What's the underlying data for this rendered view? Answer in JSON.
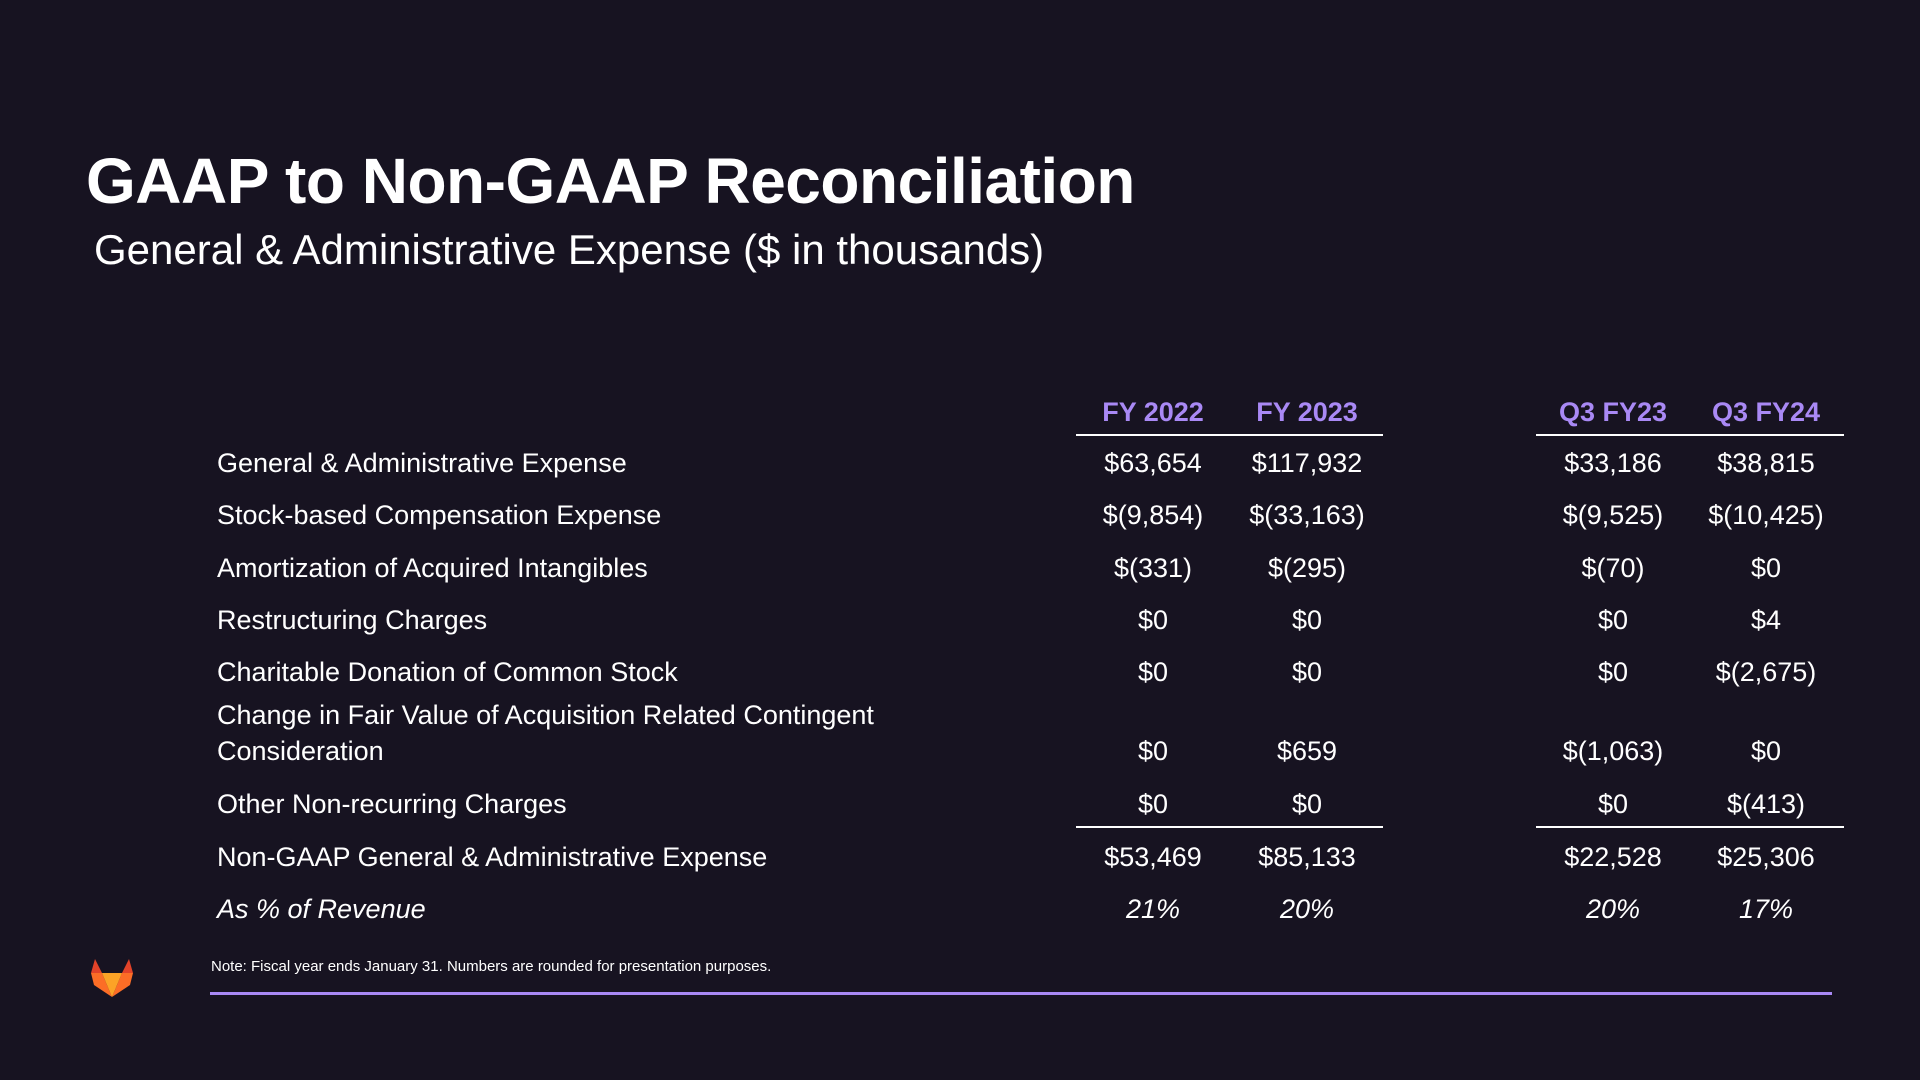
{
  "slide": {
    "title": "GAAP to Non-GAAP Reconciliation",
    "subtitle": "General & Administrative Expense ($ in thousands)",
    "note": "Note: Fiscal year ends January 31. Numbers are rounded for presentation purposes.",
    "logo_icon": "gitlab-tanuki-icon"
  },
  "table": {
    "columns": [
      "FY 2022",
      "FY 2023",
      "Q3 FY23",
      "Q3 FY24"
    ],
    "rows": [
      {
        "label_lines": [
          "General & Administrative Expense"
        ],
        "values": [
          "$63,654",
          "$117,932",
          "$33,186",
          "$38,815"
        ],
        "italic": false
      },
      {
        "label_lines": [
          "Stock-based Compensation Expense"
        ],
        "values": [
          "$(9,854)",
          "$(33,163)",
          "$(9,525)",
          "$(10,425)"
        ],
        "italic": false
      },
      {
        "label_lines": [
          "Amortization of Acquired Intangibles"
        ],
        "values": [
          "$(331)",
          "$(295)",
          "$(70)",
          "$0"
        ],
        "italic": false
      },
      {
        "label_lines": [
          "Restructuring Charges"
        ],
        "values": [
          "$0",
          "$0",
          "$0",
          "$4"
        ],
        "italic": false
      },
      {
        "label_lines": [
          "Charitable Donation of Common Stock"
        ],
        "values": [
          "$0",
          "$0",
          "$0",
          "$(2,675)"
        ],
        "italic": false
      },
      {
        "label_lines": [
          "Change in Fair Value of Acquisition Related Contingent",
          "Consideration"
        ],
        "values": [
          "$0",
          "$659",
          "$(1,063)",
          "$0"
        ],
        "italic": false
      },
      {
        "label_lines": [
          "Other Non-recurring Charges"
        ],
        "values": [
          "$0",
          "$0",
          "$0",
          "$(413)"
        ],
        "italic": false
      },
      {
        "label_lines": [
          "Non-GAAP General & Administrative Expense"
        ],
        "values": [
          "$53,469",
          "$85,133",
          "$22,528",
          "$25,306"
        ],
        "italic": false
      },
      {
        "label_lines": [
          "As % of Revenue"
        ],
        "values": [
          "21%",
          "20%",
          "20%",
          "17%"
        ],
        "italic": true
      }
    ]
  },
  "colors": {
    "background": "#171321",
    "accent": "#a989f5",
    "text": "#ffffff",
    "logo_orange": "#fc6d26",
    "logo_light": "#fca326",
    "logo_red": "#e24329"
  }
}
